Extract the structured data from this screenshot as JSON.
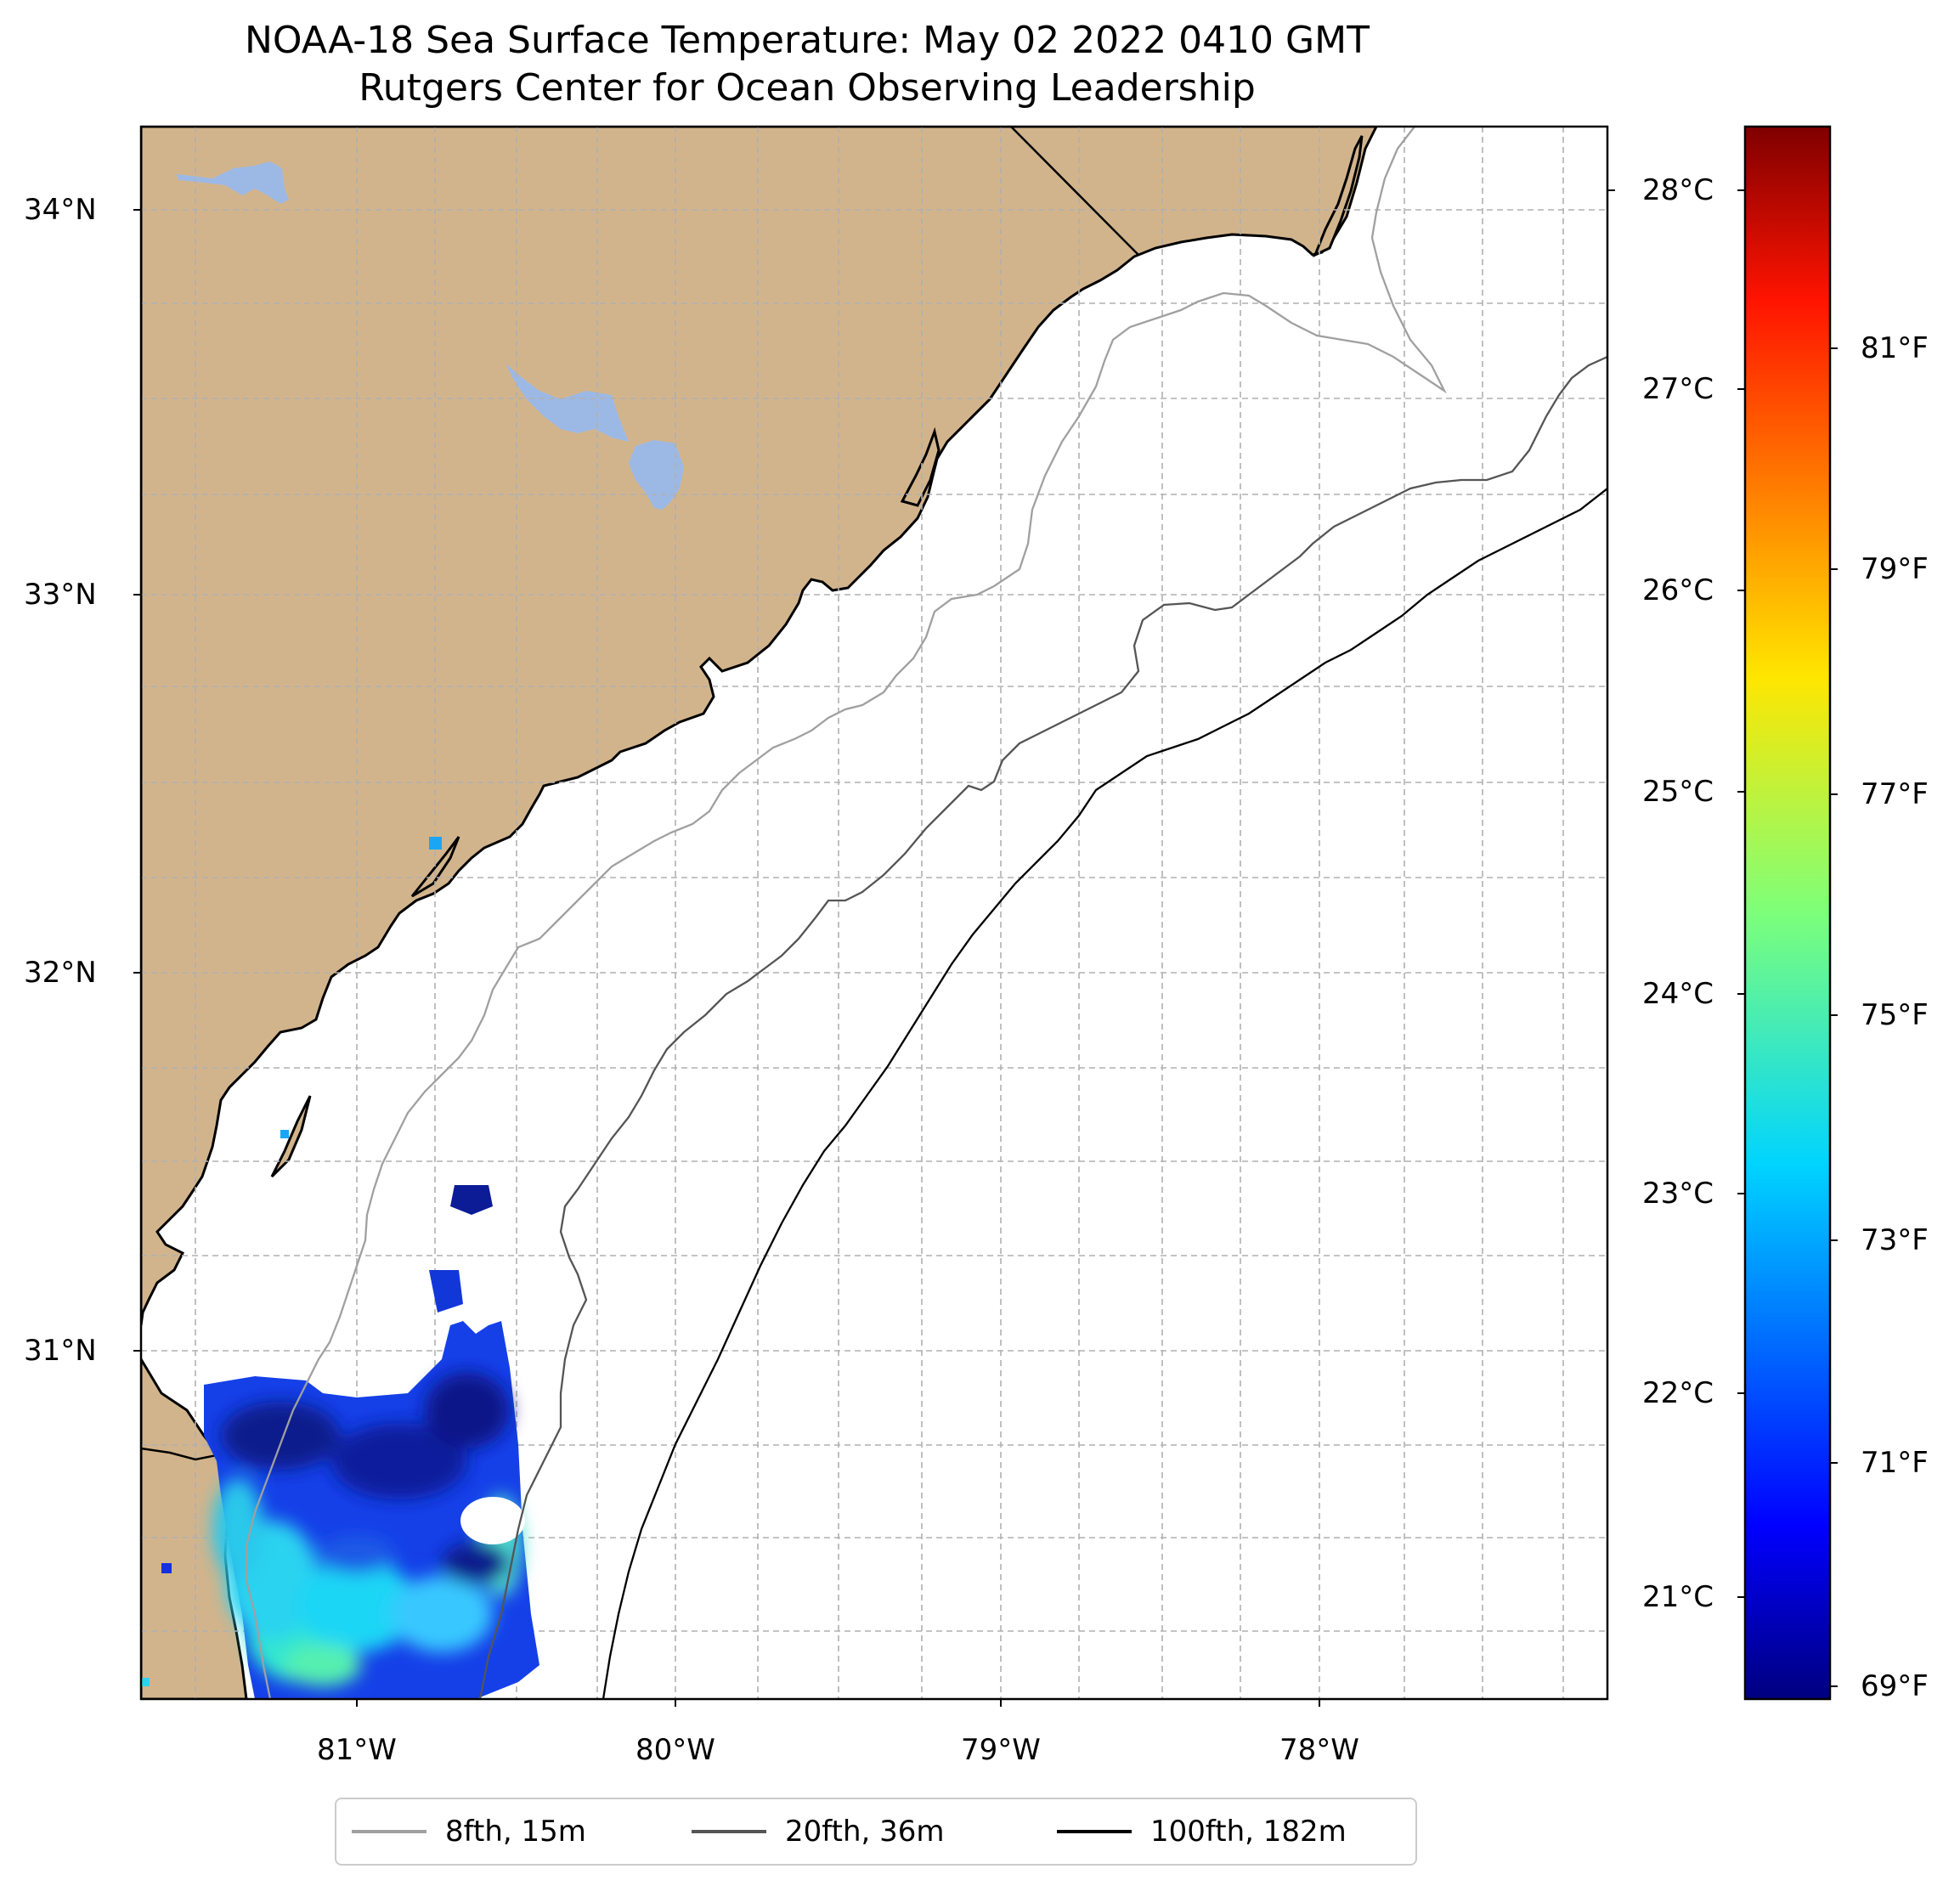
{
  "title": {
    "line1": "NOAA-18 Sea Surface Temperature: May 02 2022 0410 GMT",
    "line2": "Rutgers Center for Ocean Observing Leadership"
  },
  "map": {
    "land_color": "#d2b48c",
    "water_body_color": "#9cb9e6",
    "grid_color": "#b0b0b0",
    "latitude_ticks": [
      "34°N",
      "33°N",
      "32°N",
      "31°N"
    ],
    "longitude_ticks": [
      "81°W",
      "80°W",
      "79°W",
      "78°W"
    ]
  },
  "colorbar": {
    "celsius_ticks": [
      "28°C",
      "27°C",
      "26°C",
      "25°C",
      "24°C",
      "23°C",
      "22°C",
      "21°C"
    ],
    "fahrenheit_ticks": [
      "81°F",
      "79°F",
      "77°F",
      "75°F",
      "73°F",
      "71°F",
      "69°F"
    ],
    "colormap": "jet"
  },
  "legend": {
    "items": [
      {
        "label": "8fth, 15m",
        "color": "#a0a0a0"
      },
      {
        "label": "20fth, 36m",
        "color": "#555555"
      },
      {
        "label": "100fth, 182m",
        "color": "#000000"
      }
    ]
  }
}
